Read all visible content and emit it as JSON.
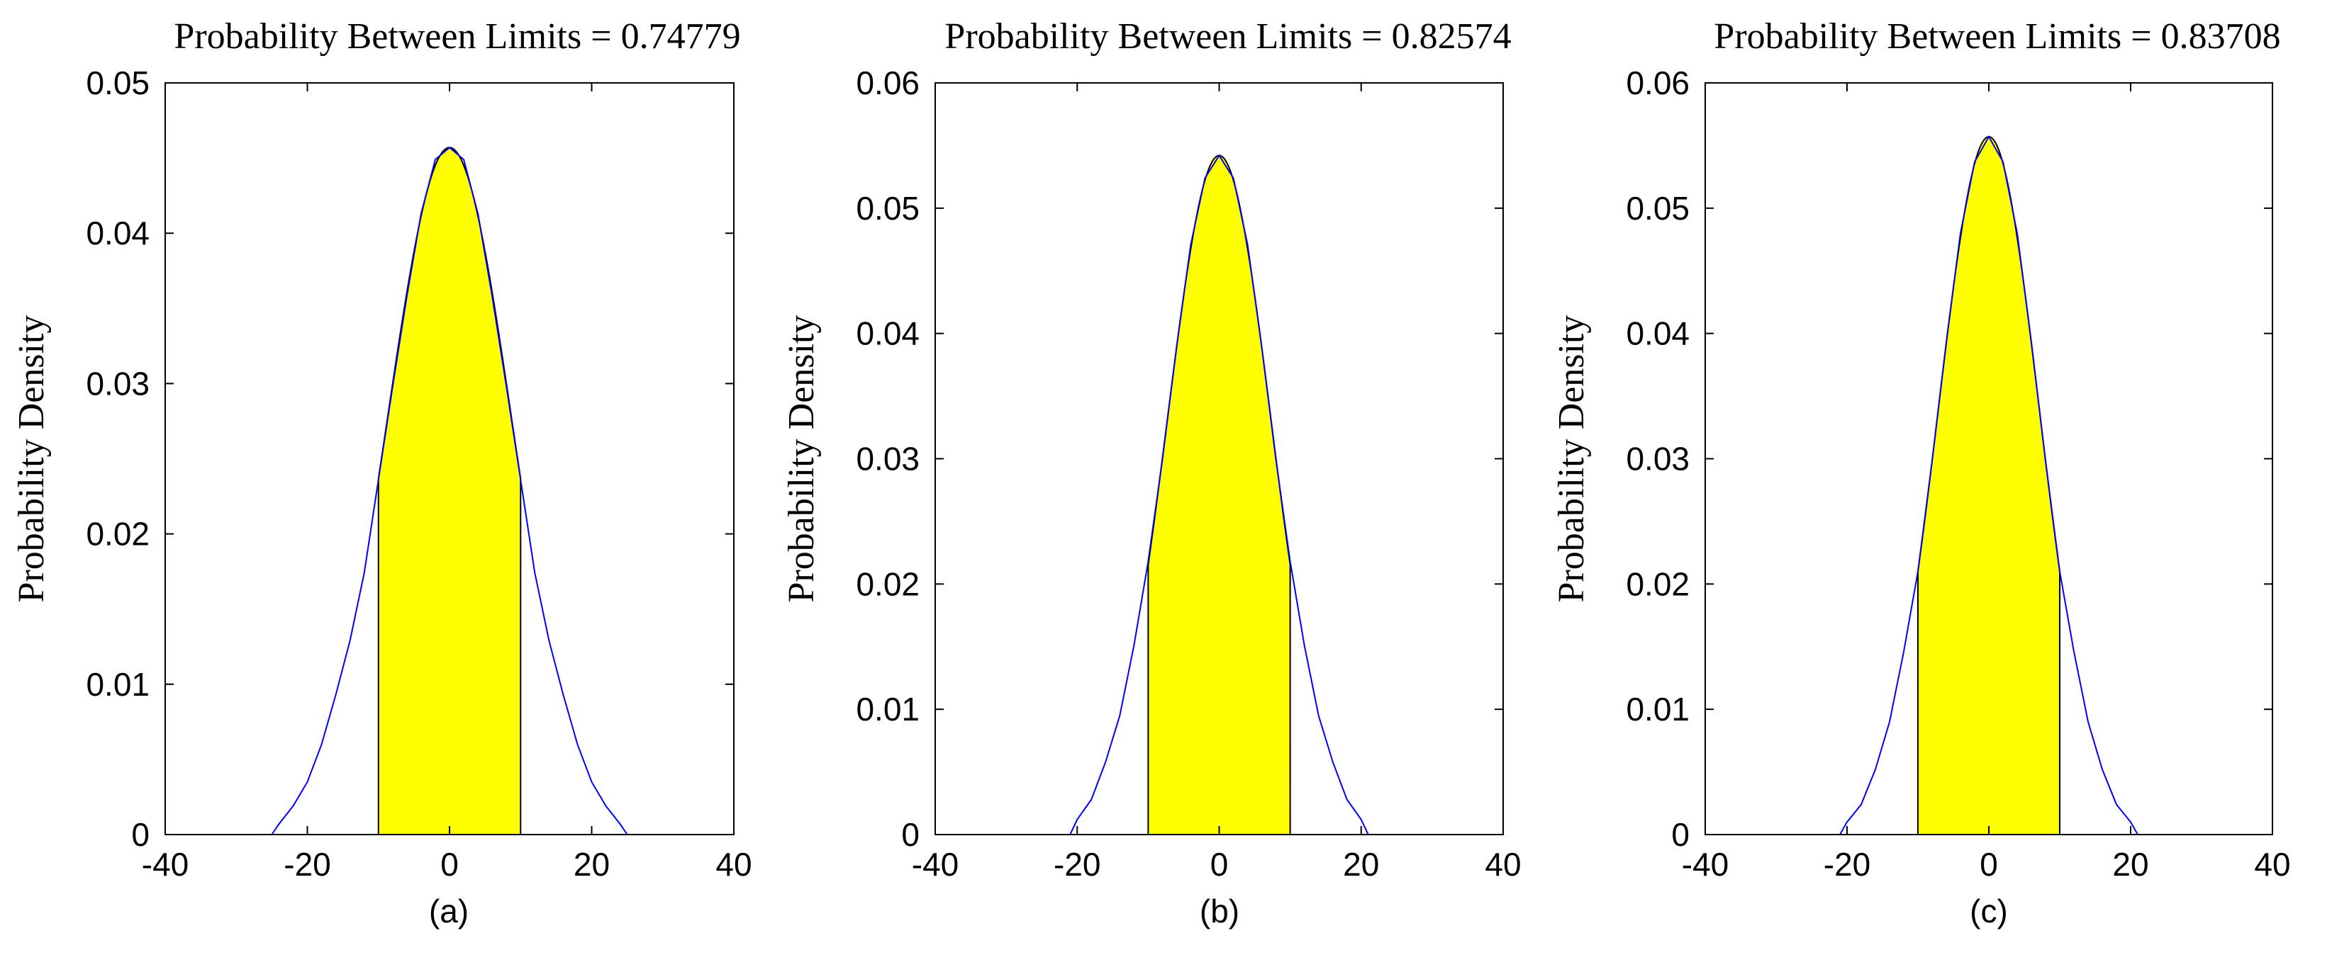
{
  "chart_data": [
    {
      "type": "area",
      "title": "Probability Between Limits = 0.74779",
      "ylabel": "Probability Density",
      "caption": "(a)",
      "xlim": [
        -40,
        40
      ],
      "ylim": [
        0,
        0.05
      ],
      "xticks": [
        -40,
        -20,
        0,
        20,
        40
      ],
      "xtick_labels": [
        "-40",
        "-20",
        "0",
        "20",
        "40"
      ],
      "yticks": [
        0,
        0.01,
        0.02,
        0.03,
        0.04,
        0.05
      ],
      "ytick_labels": [
        "0",
        "0.01",
        "0.02",
        "0.03",
        "0.04",
        "0.05"
      ],
      "shaded_limits": [
        -10,
        10
      ],
      "shade_color": "#ffff00",
      "line_color": "#0000ff",
      "peak": 0.0457,
      "sigma": 8.72,
      "x": [
        -40,
        -25,
        -24,
        -22,
        -20,
        -18,
        -16,
        -14,
        -12,
        -10,
        -8,
        -6,
        -4,
        -2,
        0,
        2,
        4,
        6,
        8,
        10,
        12,
        14,
        16,
        18,
        20,
        22,
        24,
        25,
        40
      ],
      "y": [
        0,
        0,
        0.0007,
        0.0019,
        0.0035,
        0.006,
        0.0093,
        0.0129,
        0.0174,
        0.0236,
        0.0298,
        0.0358,
        0.0413,
        0.0449,
        0.0457,
        0.0449,
        0.0413,
        0.0358,
        0.0298,
        0.0236,
        0.0174,
        0.0129,
        0.0093,
        0.006,
        0.0035,
        0.0019,
        0.0007,
        0,
        0
      ]
    },
    {
      "type": "area",
      "title": "Probability Between Limits = 0.82574",
      "ylabel": "Probability Density",
      "caption": "(b)",
      "xlim": [
        -40,
        40
      ],
      "ylim": [
        0,
        0.06
      ],
      "xticks": [
        -40,
        -20,
        0,
        20,
        40
      ],
      "xtick_labels": [
        "-40",
        "-20",
        "0",
        "20",
        "40"
      ],
      "yticks": [
        0,
        0.01,
        0.02,
        0.03,
        0.04,
        0.05,
        0.06
      ],
      "ytick_labels": [
        "0",
        "0.01",
        "0.02",
        "0.03",
        "0.04",
        "0.05",
        "0.06"
      ],
      "shaded_limits": [
        -10,
        10
      ],
      "shade_color": "#ffff00",
      "line_color": "#0000ff",
      "peak": 0.0542,
      "sigma": 7.36,
      "x": [
        -40,
        -21,
        -20,
        -18,
        -16,
        -14,
        -12,
        -10,
        -8,
        -6,
        -4,
        -2,
        0,
        2,
        4,
        6,
        8,
        10,
        12,
        14,
        16,
        18,
        20,
        21,
        40
      ],
      "y": [
        0,
        0,
        0.0012,
        0.0028,
        0.0058,
        0.0095,
        0.0151,
        0.0218,
        0.0299,
        0.0389,
        0.0471,
        0.0524,
        0.0542,
        0.0524,
        0.0471,
        0.0389,
        0.0299,
        0.0218,
        0.0151,
        0.0095,
        0.0058,
        0.0028,
        0.0012,
        0,
        0
      ]
    },
    {
      "type": "area",
      "title": "Probability Between Limits = 0.83708",
      "ylabel": "Probability Density",
      "caption": "(c)",
      "xlim": [
        -40,
        40
      ],
      "ylim": [
        0,
        0.06
      ],
      "xticks": [
        -40,
        -20,
        0,
        20,
        40
      ],
      "xtick_labels": [
        "-40",
        "-20",
        "0",
        "20",
        "40"
      ],
      "yticks": [
        0,
        0.01,
        0.02,
        0.03,
        0.04,
        0.05,
        0.06
      ],
      "ytick_labels": [
        "0",
        "0.01",
        "0.02",
        "0.03",
        "0.04",
        "0.05",
        "0.06"
      ],
      "shaded_limits": [
        -10,
        10
      ],
      "shade_color": "#ffff00",
      "line_color": "#0000ff",
      "peak": 0.0557,
      "sigma": 7.16,
      "x": [
        -40,
        -21,
        -20,
        -18,
        -16,
        -14,
        -12,
        -10,
        -8,
        -6,
        -4,
        -2,
        0,
        2,
        4,
        6,
        8,
        10,
        12,
        14,
        16,
        18,
        20,
        21,
        40
      ],
      "y": [
        0,
        0,
        0.001,
        0.0024,
        0.0052,
        0.009,
        0.0146,
        0.021,
        0.0298,
        0.0393,
        0.048,
        0.0537,
        0.0557,
        0.0537,
        0.048,
        0.0393,
        0.0298,
        0.021,
        0.0146,
        0.009,
        0.0052,
        0.0024,
        0.001,
        0,
        0
      ]
    }
  ]
}
